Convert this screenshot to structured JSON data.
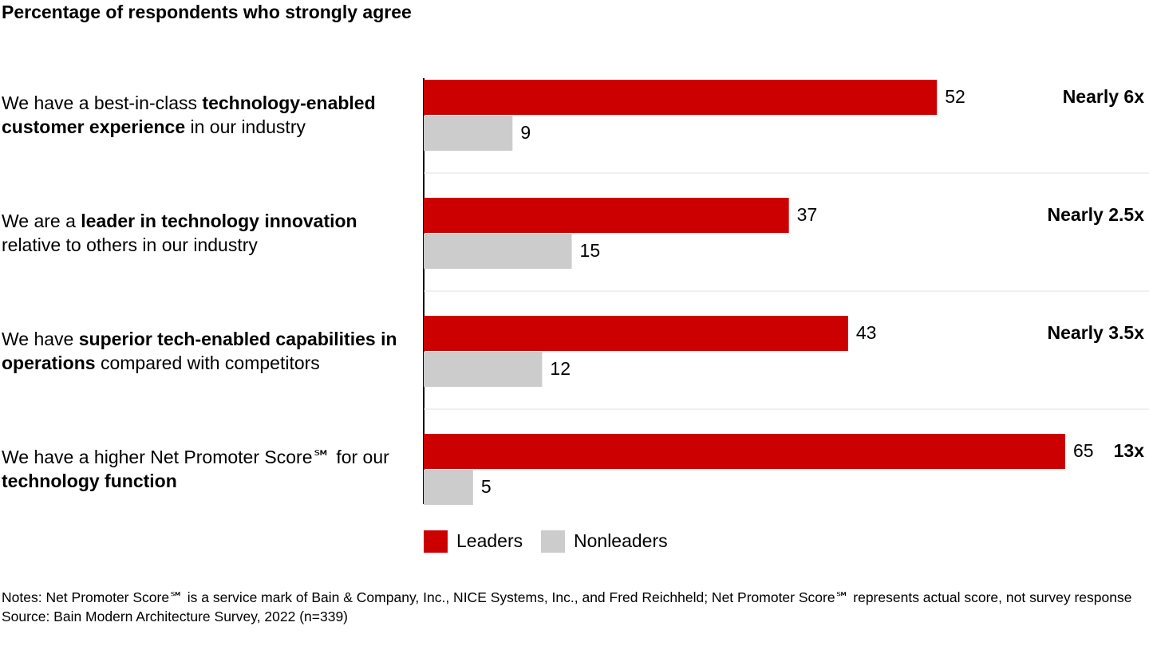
{
  "chart_data": {
    "type": "hbar",
    "title": "Percentage of respondents who strongly agree",
    "categories": [
      [
        {
          "text": "We have a best-in-class ",
          "bold": false
        },
        {
          "text": "technology-enabled customer experience",
          "bold": true
        },
        {
          "text": " in our industry",
          "bold": false
        }
      ],
      [
        {
          "text": "We are a ",
          "bold": false
        },
        {
          "text": "leader in technology innovation",
          "bold": true
        },
        {
          "text": " relative to others in our industry",
          "bold": false
        }
      ],
      [
        {
          "text": "We have ",
          "bold": false
        },
        {
          "text": "superior tech-enabled capabilities in operations",
          "bold": true
        },
        {
          "text": " compared with competitors",
          "bold": false
        }
      ],
      [
        {
          "text": "We have a higher Net Promoter Score℠ for our ",
          "bold": false
        },
        {
          "text": "technology function",
          "bold": true
        }
      ]
    ],
    "series": [
      {
        "name": "Leaders",
        "color": "#cc0000",
        "values": [
          52,
          37,
          43,
          65
        ]
      },
      {
        "name": "Nonleaders",
        "color": "#cccccc",
        "values": [
          9,
          15,
          12,
          5
        ]
      }
    ],
    "annotations": [
      "Nearly 6x",
      "Nearly 2.5x",
      "Nearly 3.5x",
      "13x"
    ],
    "annotation_color": "#cc0000",
    "xlim": [
      0,
      65
    ],
    "notes": [
      "Notes: Net Promoter Score℠ is a service mark of Bain & Company, Inc., NICE Systems, Inc., and Fred Reichheld; Net Promoter Score℠ represents actual score, not survey response",
      "Source: Bain Modern Architecture Survey, 2022 (n=339)"
    ]
  }
}
